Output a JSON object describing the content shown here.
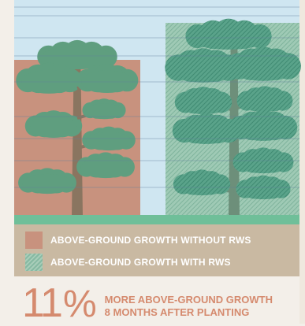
{
  "legend": {
    "without_label": "ABOVE-GROUND GROWTH WITHOUT RWS",
    "with_label": "ABOVE-GROUND GROWTH WITH RWS"
  },
  "stat": {
    "number": "11",
    "percent_sign": "%",
    "line1": "MORE ABOVE-GROUND GROWTH",
    "line2": "8 MONTHS AFTER PLANTING"
  },
  "colors": {
    "sky": "#cfe6f1",
    "without_rws": "#c8927e",
    "with_rws": "#86b9a2",
    "ground": "#6fbf99",
    "panel": "#c9b9a2",
    "accent": "#d58a6e"
  },
  "chart_data": {
    "type": "bar",
    "categories": [
      "ABOVE-GROUND GROWTH WITHOUT RWS",
      "ABOVE-GROUND GROWTH WITH RWS"
    ],
    "values": [
      100,
      111
    ],
    "unit": "relative above-ground growth (without RWS = 100)",
    "annotation": "11% MORE ABOVE-GROUND GROWTH 8 MONTHS AFTER PLANTING",
    "grid": true
  }
}
